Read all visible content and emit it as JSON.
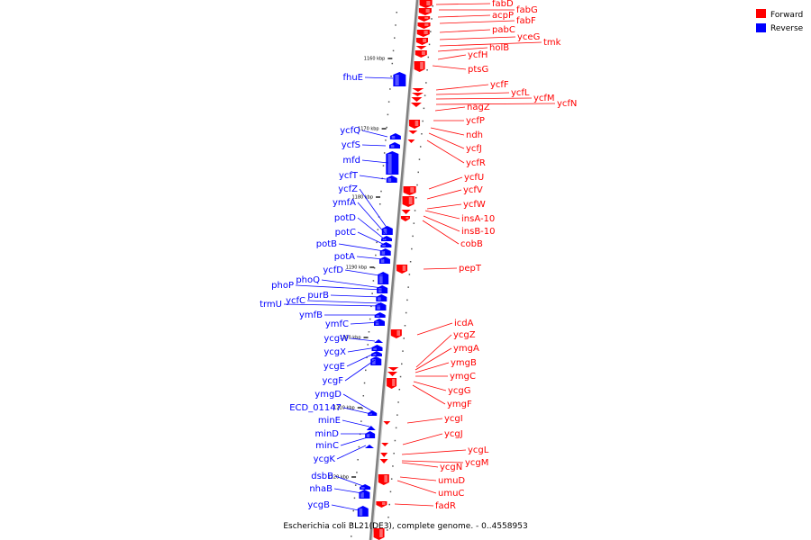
{
  "legend": {
    "items": [
      {
        "label": "Forward",
        "color": "#ff0000"
      },
      {
        "label": "Reverse",
        "color": "#0000ff"
      }
    ]
  },
  "caption": "Escherichia coli BL21(DE3), complete genome. - 0..4558953",
  "colors": {
    "forward": "#ff0000",
    "reverse": "#0000ff",
    "backbone": "#808080"
  },
  "scale_ticks": [
    "1160 kbp",
    "1170 kbp",
    "1180 kbp",
    "1190 kbp",
    "1200 kbp",
    "1210 kbp",
    "1220 kbp"
  ],
  "forward_genes": [
    "fabD",
    "fabG",
    "acpP",
    "fabF",
    "pabC",
    "yceG",
    "tmk",
    "holB",
    "ycfH",
    "ptsG",
    "ycfF",
    "ycfL",
    "ycfM",
    "ycfN",
    "nagZ",
    "ycfP",
    "ndh",
    "ycfJ",
    "ycfR",
    "ycfU",
    "ycfV",
    "ycfW",
    "insA-10",
    "insB-10",
    "cobB",
    "pepT",
    "icdA",
    "ycgZ",
    "ymgA",
    "ymgB",
    "ymgC",
    "ycgG",
    "ymgF",
    "ycgI",
    "ycgJ",
    "ycgL",
    "ycgM",
    "ycgN",
    "umuD",
    "umuC",
    "fadR"
  ],
  "reverse_genes": [
    "fhuE",
    "ycfQ",
    "ycfS",
    "mfd",
    "ycfT",
    "ycfZ",
    "ymfA",
    "potD",
    "potC",
    "potB",
    "potA",
    "ycfD",
    "phoQ",
    "phoP",
    "purB",
    "ycfC",
    "trmU",
    "ymfB",
    "ymfC",
    "ycgW",
    "ycgX",
    "ycgE",
    "ycgF",
    "ymgD",
    "ECD_01147",
    "minE",
    "minD",
    "minC",
    "ycgK",
    "dsbB",
    "nhaB",
    "ycgB"
  ]
}
